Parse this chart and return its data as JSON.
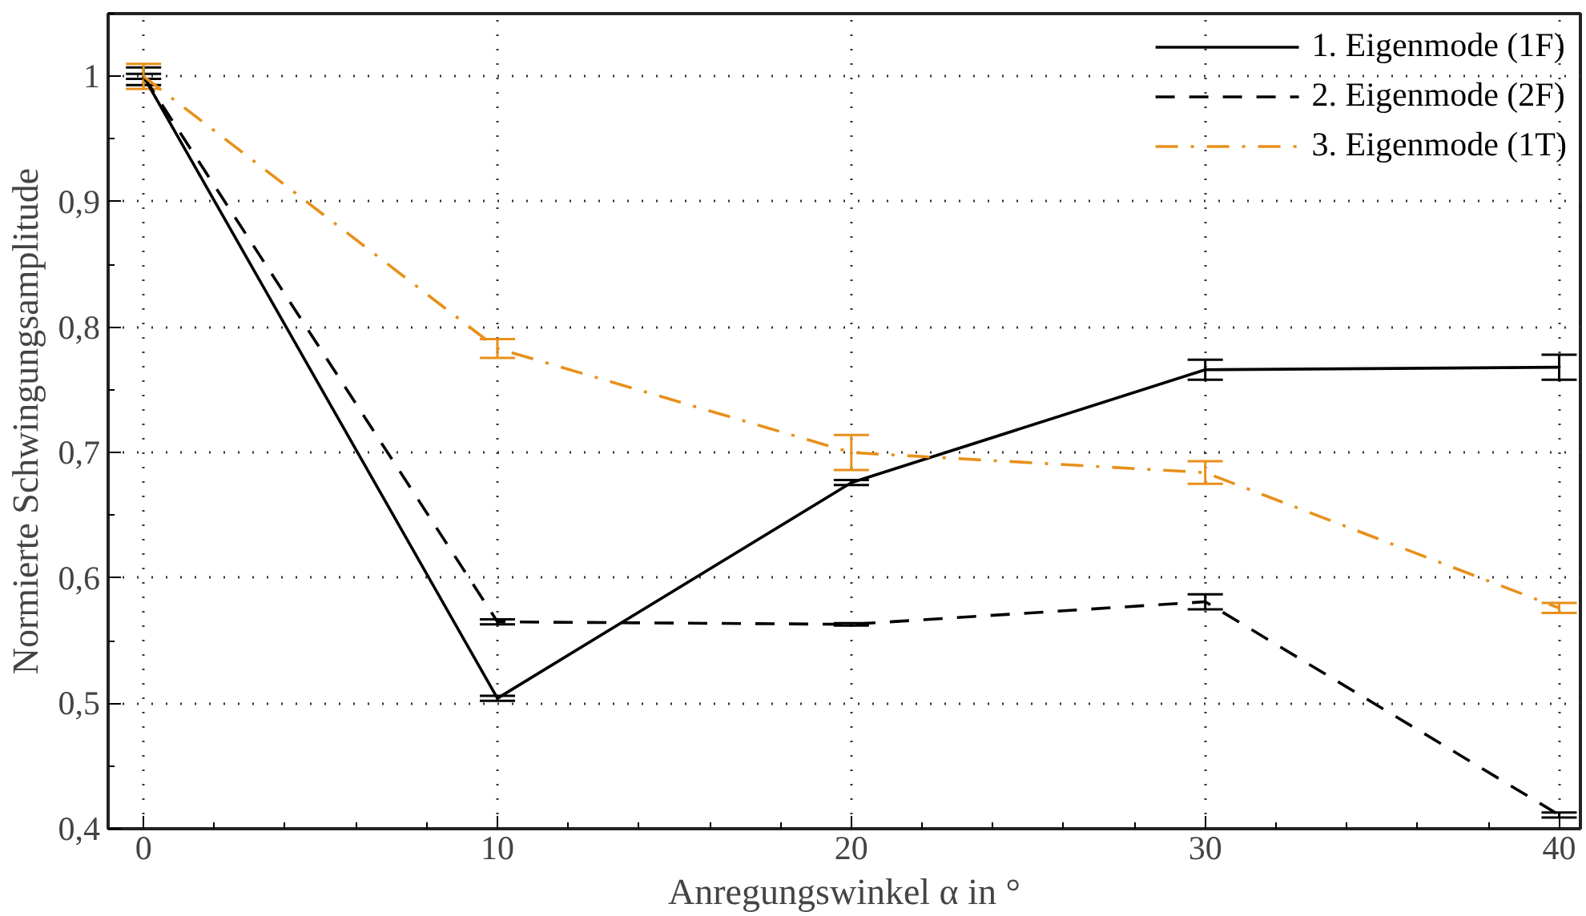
{
  "chart_data": {
    "type": "line",
    "xlabel": "Anregungswinkel α in °",
    "ylabel": "Normierte Schwingungsamplitude",
    "x": [
      0,
      10,
      20,
      30,
      40
    ],
    "series": [
      {
        "name": "1. Eigenmode (1F)",
        "color": "#000000",
        "line_style": "solid",
        "values": [
          1.0,
          0.504,
          0.676,
          0.766,
          0.768
        ],
        "errors": [
          0.007,
          0.002,
          0.002,
          0.008,
          0.01
        ]
      },
      {
        "name": "2. Eigenmode (2F)",
        "color": "#000000",
        "line_style": "dashed",
        "values": [
          1.0,
          0.565,
          0.563,
          0.581,
          0.411
        ],
        "errors": [
          0.002,
          0.002,
          0.001,
          0.006,
          0.002
        ]
      },
      {
        "name": "3. Eigenmode (1T)",
        "color": "#e8901a",
        "line_style": "dashdot",
        "values": [
          1.0,
          0.783,
          0.7,
          0.684,
          0.576
        ],
        "errors": [
          0.01,
          0.0075,
          0.014,
          0.009,
          0.004
        ]
      }
    ],
    "xlim": [
      -1,
      40.6
    ],
    "ylim": [
      0.4,
      1.05
    ],
    "xticks": [
      0,
      10,
      20,
      30,
      40
    ],
    "yticks": [
      {
        "value": 0.4,
        "label": "0,4"
      },
      {
        "value": 0.5,
        "label": "0,5"
      },
      {
        "value": 0.6,
        "label": "0,6"
      },
      {
        "value": 0.7,
        "label": "0,7"
      },
      {
        "value": 0.8,
        "label": "0,8"
      },
      {
        "value": 0.9,
        "label": "0,9"
      },
      {
        "value": 1,
        "label": "1"
      }
    ],
    "grid": true,
    "legend": "top right",
    "marker": "none"
  }
}
